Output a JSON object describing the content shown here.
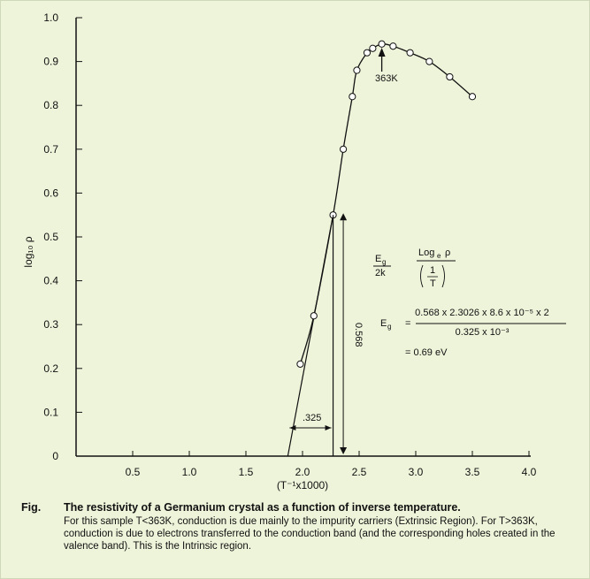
{
  "chart_data": {
    "type": "line",
    "xlabel": "(T⁻¹x1000)",
    "ylabel": "log₁₀ ρ",
    "xlim": [
      0,
      4.0
    ],
    "ylim": [
      0,
      1.0
    ],
    "x_ticks": [
      "0.5",
      "1.0",
      "1.5",
      "2.0",
      "2.5",
      "3.0",
      "3.5",
      "4.0"
    ],
    "y_ticks": [
      "0",
      "0.1",
      "0.2",
      "0.3",
      "0.4",
      "0.5",
      "0.6",
      "0.7",
      "0.8",
      "0.9",
      "1.0"
    ],
    "series": [
      {
        "x": [
          1.98,
          2.1,
          2.27,
          2.36,
          2.44,
          2.48,
          2.57,
          2.62,
          2.7,
          2.8,
          2.95,
          3.12,
          3.3,
          3.5
        ],
        "y": [
          0.21,
          0.32,
          0.55,
          0.7,
          0.82,
          0.88,
          0.92,
          0.93,
          0.94,
          0.935,
          0.92,
          0.9,
          0.865,
          0.82
        ]
      }
    ],
    "fit_line": {
      "x": [
        1.87,
        2.27
      ],
      "y": [
        0,
        0.55
      ]
    },
    "annotations": {
      "peak_label": "363K",
      "run_label": ".325",
      "rise_label": "0.568",
      "eq_eg_top": "E",
      "eq_eg_sub": "g",
      "eq_2k": "2k",
      "eq_log_top": "Log",
      "eq_log_sub": "e",
      "eq_rho": "ρ",
      "eq_one": "1",
      "eq_t": "T",
      "eq_eg2_top": "E",
      "eq_eg2_sub": "g",
      "eq_equals": "=",
      "eq_numerator": "0.568 x 2.3026 x 8.6 x 10⁻⁵ x 2",
      "eq_denominator": "0.325 x 10⁻³",
      "eq_result": "= 0.69 eV"
    },
    "grid": false
  },
  "caption": {
    "label": "Fig.",
    "title": "The resistivity of a Germanium crystal as a function of inverse temperature.",
    "body": "For this sample T<363K, conduction is due mainly to the impurity carriers (Extrinsic Region). For T>363K, conduction is due to electrons transferred to the conduction band (and the corresponding holes created in the valence band). This is the Intrinsic region."
  }
}
